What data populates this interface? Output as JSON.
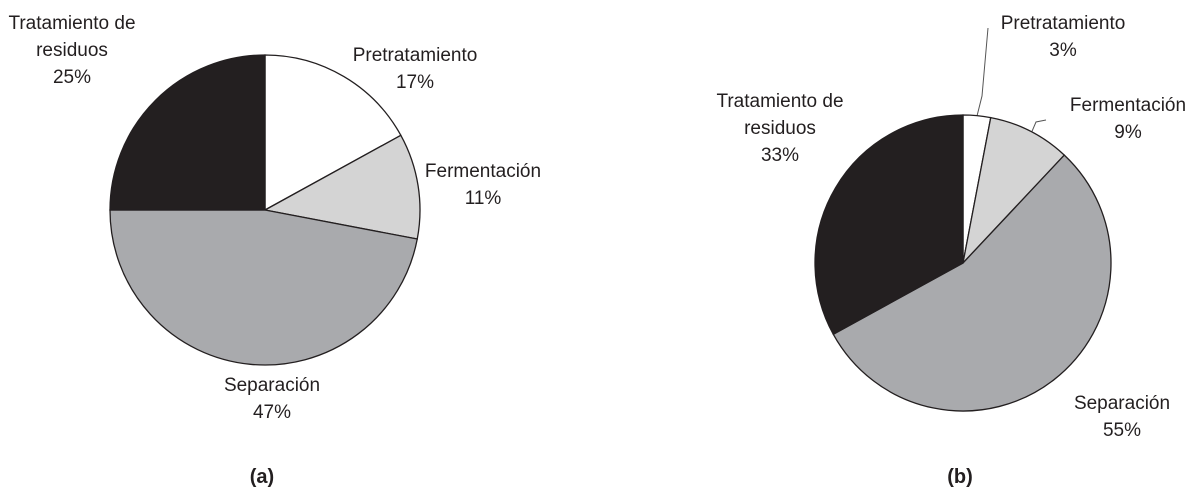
{
  "chart_data": [
    {
      "type": "pie",
      "title": "(a)",
      "categories": [
        "Pretratamiento",
        "Fermentación",
        "Separación",
        "Tratamiento de residuos"
      ],
      "values": [
        17,
        11,
        47,
        25
      ],
      "value_labels": [
        "17%",
        "11%",
        "47%",
        "25%"
      ],
      "colors": [
        "#ffffff",
        "#d4d4d4",
        "#a9aaad",
        "#231f20"
      ]
    },
    {
      "type": "pie",
      "title": "(b)",
      "categories": [
        "Pretratamiento",
        "Fermentación",
        "Separación",
        "Tratamiento de residuos"
      ],
      "values": [
        3,
        9,
        55,
        33
      ],
      "value_labels": [
        "3%",
        "9%",
        "55%",
        "33%"
      ],
      "colors": [
        "#ffffff",
        "#d4d4d4",
        "#a9aaad",
        "#231f20"
      ]
    }
  ]
}
